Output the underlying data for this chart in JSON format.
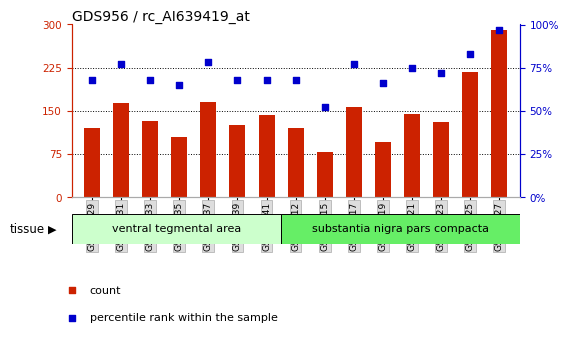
{
  "title": "GDS956 / rc_AI639419_at",
  "samples": [
    "GSM19329",
    "GSM19331",
    "GSM19333",
    "GSM19335",
    "GSM19337",
    "GSM19339",
    "GSM19341",
    "GSM19312",
    "GSM19315",
    "GSM19317",
    "GSM19319",
    "GSM19321",
    "GSM19323",
    "GSM19325",
    "GSM19327"
  ],
  "counts": [
    120,
    163,
    132,
    105,
    165,
    125,
    142,
    120,
    78,
    157,
    95,
    145,
    130,
    218,
    290
  ],
  "percentiles": [
    68,
    77,
    68,
    65,
    78,
    68,
    68,
    68,
    52,
    77,
    66,
    75,
    72,
    83,
    97
  ],
  "group1_label": "ventral tegmental area",
  "group2_label": "substantia nigra pars compacta",
  "group1_count": 7,
  "group2_count": 8,
  "ylim_left": [
    0,
    300
  ],
  "ylim_right": [
    0,
    100
  ],
  "yticks_left": [
    0,
    75,
    150,
    225,
    300
  ],
  "yticks_right": [
    0,
    25,
    50,
    75,
    100
  ],
  "bar_color": "#cc2200",
  "scatter_color": "#0000cc",
  "bg_color_group1": "#ccffcc",
  "bg_color_group2": "#66ee66",
  "xticklabel_bg": "#dddddd",
  "tissue_label": "tissue",
  "legend_count_label": "count",
  "legend_percentile_label": "percentile rank within the sample",
  "grid_lines": [
    75,
    150,
    225
  ],
  "title_color": "#000000",
  "left_axis_color": "#cc2200",
  "right_axis_color": "#0000cc"
}
